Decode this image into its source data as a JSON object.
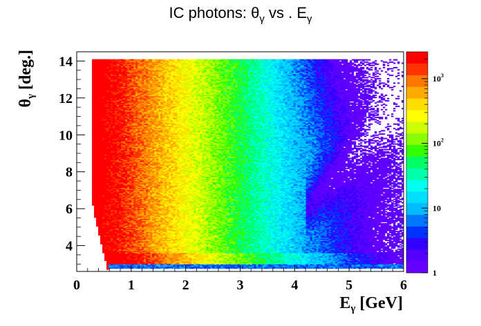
{
  "chart_data": {
    "type": "heatmap",
    "title_main": "IC photons: θ",
    "title_sub1": "γ",
    "title_mid": " vs . E",
    "title_sub2": "γ",
    "xlabel_main": "E",
    "xlabel_sub": "γ",
    "xlabel_unit": " [GeV]",
    "ylabel_main": "θ",
    "ylabel_sub": "γ",
    "ylabel_unit": " [deg.]",
    "xlim": [
      0,
      6
    ],
    "ylim": [
      2.6,
      14.5
    ],
    "x_ticks": [
      0,
      1,
      2,
      3,
      4,
      5,
      6
    ],
    "y_ticks": [
      4,
      6,
      8,
      10,
      12,
      14
    ],
    "z_scale": "log",
    "zlim": [
      1,
      2600
    ],
    "z_tick_labels": [
      {
        "value": 1,
        "label": "1"
      },
      {
        "value": 10,
        "label": "10"
      },
      {
        "value": 100,
        "label": "10",
        "exp": "2"
      },
      {
        "value": 1000,
        "label": "10",
        "exp": "3"
      }
    ],
    "bins": {
      "x_min": 0.28,
      "x_max": 6.0,
      "y_min": 2.7,
      "y_max": 14.1
    },
    "palette": [
      "#6600ff",
      "#5500ff",
      "#3300ff",
      "#0033ff",
      "#0077ff",
      "#00bbff",
      "#00ddff",
      "#00ffee",
      "#00ffaa",
      "#00ff66",
      "#33ff00",
      "#88ff00",
      "#ccff00",
      "#ffff00",
      "#ffdd00",
      "#ffaa00",
      "#ff7700",
      "#ff3300",
      "#ff0000"
    ]
  }
}
